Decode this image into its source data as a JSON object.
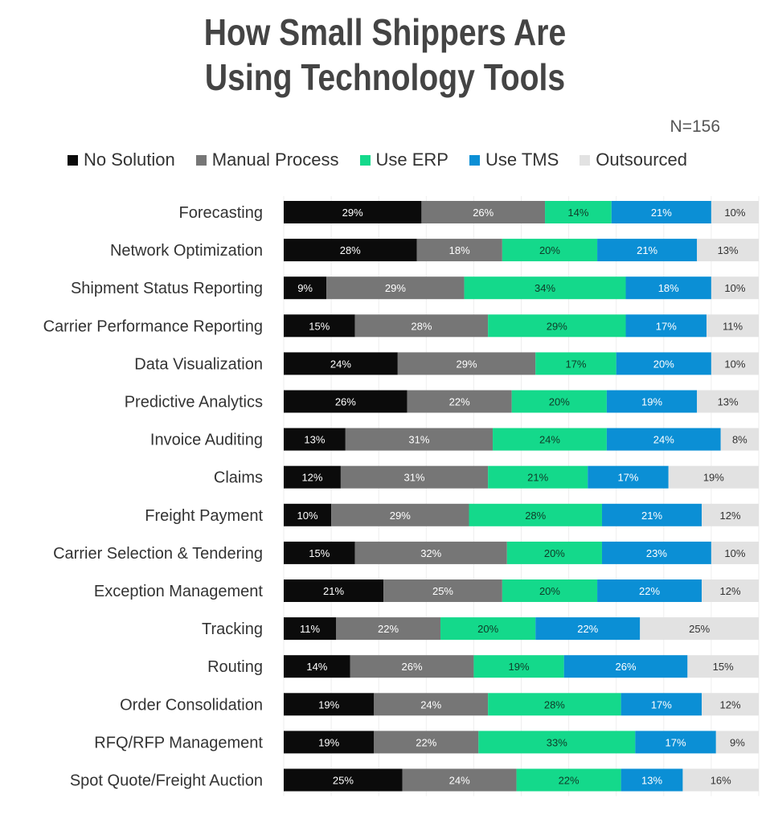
{
  "title_line1": "How Small Shippers Are",
  "title_line2": "Using Technology Tools",
  "sample_size": "N=156",
  "chart_data": {
    "type": "bar",
    "orientation": "horizontal",
    "stacked": true,
    "percent_stacked": true,
    "legend_position": "top",
    "grid": true,
    "xlim": [
      0,
      100
    ],
    "categories": [
      "Forecasting",
      "Network Optimization",
      "Shipment Status Reporting",
      "Carrier Performance Reporting",
      "Data Visualization",
      "Predictive Analytics",
      "Invoice Auditing",
      "Claims",
      "Freight Payment",
      "Carrier Selection & Tendering",
      "Exception Management",
      "Tracking",
      "Routing",
      "Order Consolidation",
      "RFQ/RFP Management",
      "Spot Quote/Freight Auction"
    ],
    "series": [
      {
        "name": "No Solution",
        "color": "#0b0b0b",
        "label_color": "#ffffff",
        "values": [
          29,
          28,
          9,
          15,
          24,
          26,
          13,
          12,
          10,
          15,
          21,
          11,
          14,
          19,
          19,
          25
        ]
      },
      {
        "name": "Manual Process",
        "color": "#767676",
        "label_color": "#ffffff",
        "values": [
          26,
          18,
          29,
          28,
          29,
          22,
          31,
          31,
          29,
          32,
          25,
          22,
          26,
          24,
          22,
          24
        ]
      },
      {
        "name": "Use ERP",
        "color": "#14d98b",
        "label_color": "#0f3b28",
        "values": [
          14,
          20,
          34,
          29,
          17,
          20,
          24,
          21,
          28,
          20,
          20,
          20,
          19,
          28,
          33,
          22
        ]
      },
      {
        "name": "Use TMS",
        "color": "#0b8fd5",
        "label_color": "#ffffff",
        "values": [
          21,
          21,
          18,
          17,
          20,
          19,
          24,
          17,
          21,
          23,
          22,
          22,
          26,
          17,
          17,
          13
        ]
      },
      {
        "name": "Outsourced",
        "color": "#e2e2e2",
        "label_color": "#333333",
        "values": [
          10,
          13,
          10,
          11,
          10,
          13,
          8,
          19,
          12,
          10,
          12,
          25,
          15,
          12,
          9,
          16
        ]
      }
    ]
  }
}
